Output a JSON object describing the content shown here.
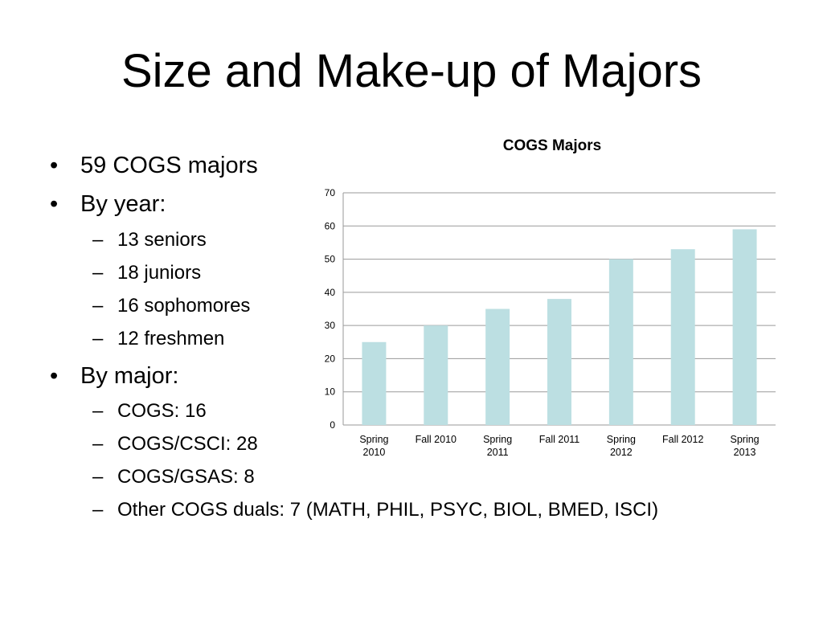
{
  "slide": {
    "title": "Size and Make-up of Majors"
  },
  "bullets": [
    {
      "level": 1,
      "marker": "•",
      "text": "59 COGS majors"
    },
    {
      "level": 1,
      "marker": "•",
      "text": "By year:"
    },
    {
      "level": 2,
      "marker": "–",
      "text": "13 seniors"
    },
    {
      "level": 2,
      "marker": "–",
      "text": "18 juniors"
    },
    {
      "level": 2,
      "marker": "–",
      "text": "16 sophomores"
    },
    {
      "level": 2,
      "marker": "–",
      "text": "12 freshmen"
    },
    {
      "level": 1,
      "marker": "•",
      "text": "By major:"
    },
    {
      "level": 2,
      "marker": "–",
      "text": "COGS: 16"
    },
    {
      "level": 2,
      "marker": "–",
      "text": "COGS/CSCI: 28"
    },
    {
      "level": 2,
      "marker": "–",
      "text": "COGS/GSAS: 8"
    },
    {
      "level": 2,
      "marker": "–",
      "text": "Other COGS duals: 7 (MATH, PHIL, PSYC, BIOL, BMED, ISCI)"
    }
  ],
  "chart_data": {
    "type": "bar",
    "title": "COGS Majors",
    "categories": [
      [
        "Spring",
        "2010"
      ],
      [
        "Fall 2010"
      ],
      [
        "Spring",
        "2011"
      ],
      [
        "Fall 2011"
      ],
      [
        "Spring",
        "2012"
      ],
      [
        "Fall 2012"
      ],
      [
        "Spring",
        "2013"
      ]
    ],
    "values": [
      25,
      30,
      35,
      38,
      50,
      53,
      59
    ],
    "ylim": [
      0,
      70
    ],
    "yticks": [
      0,
      10,
      20,
      30,
      40,
      50,
      60,
      70
    ],
    "grid": true,
    "legend": false,
    "xlabel": "",
    "ylabel": "",
    "colors": {
      "bar": "#bcdfe2",
      "grid": "#9a9a9a",
      "axis": "#9a9a9a"
    }
  }
}
